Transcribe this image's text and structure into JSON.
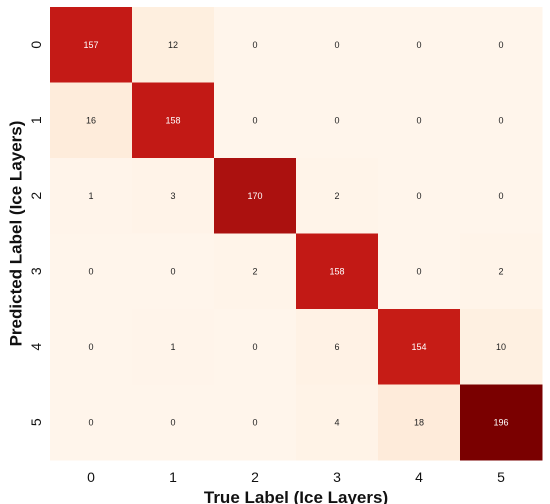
{
  "chart_data": {
    "type": "heatmap",
    "title": "",
    "xlabel": "True Label (Ice Layers)",
    "ylabel": "Predicted Label (Ice Layers)",
    "x_categories": [
      "0",
      "1",
      "2",
      "3",
      "4",
      "5"
    ],
    "y_categories": [
      "0",
      "1",
      "2",
      "3",
      "4",
      "5"
    ],
    "values": [
      [
        157,
        12,
        0,
        0,
        0,
        0
      ],
      [
        16,
        158,
        0,
        0,
        0,
        0
      ],
      [
        1,
        3,
        170,
        2,
        0,
        0
      ],
      [
        0,
        0,
        2,
        158,
        0,
        2
      ],
      [
        0,
        1,
        0,
        6,
        154,
        10
      ],
      [
        0,
        0,
        0,
        4,
        18,
        196
      ]
    ],
    "color_range": [
      0,
      196
    ],
    "colormap": [
      "#fff5eb",
      "#fde0c5",
      "#fca270",
      "#e3331c",
      "#c41a16",
      "#7a0000"
    ],
    "grid": false,
    "legend": "none"
  }
}
